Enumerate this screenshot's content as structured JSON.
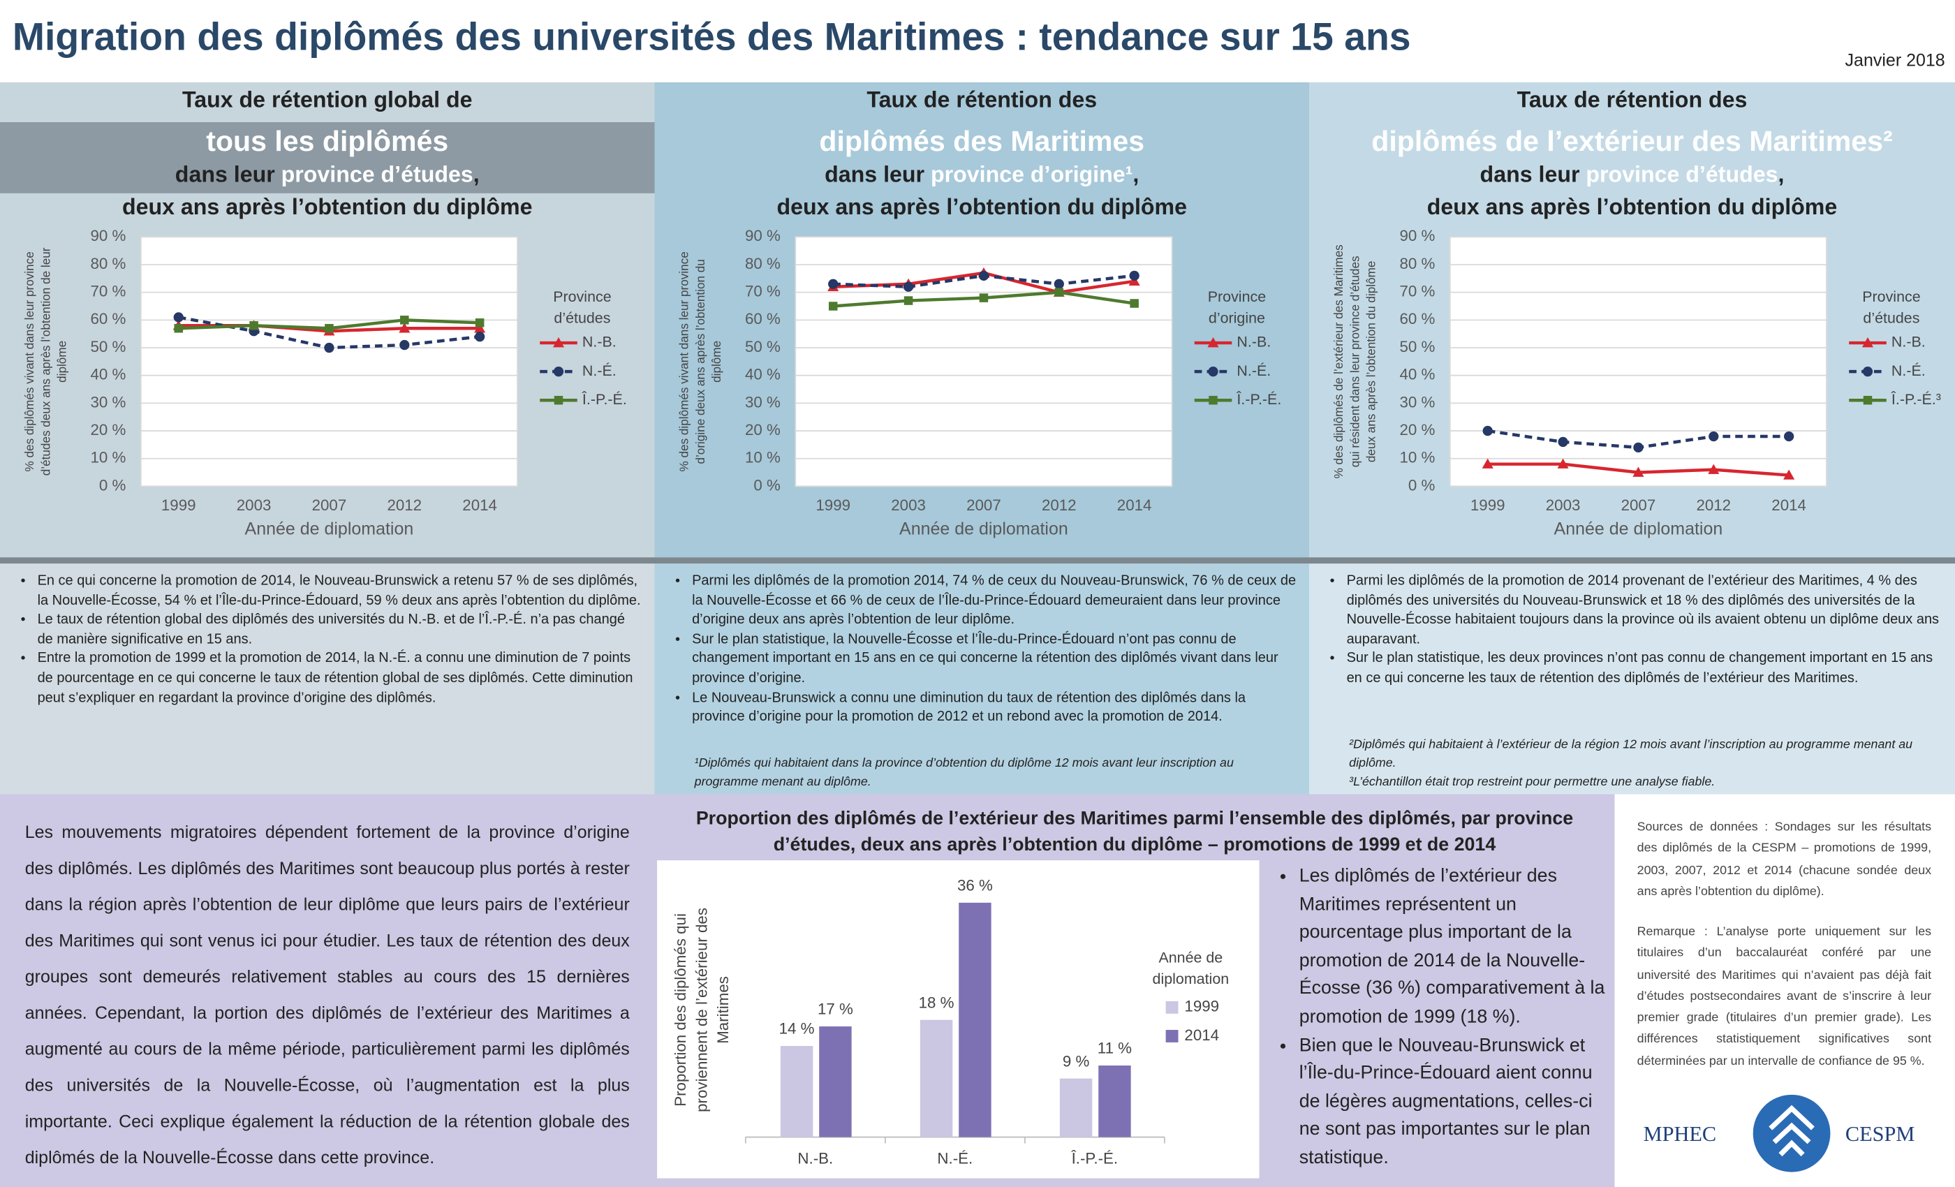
{
  "header": {
    "title": "Migration des diplômés des universités des Maritimes : tendance sur 15 ans",
    "date": "Janvier 2018"
  },
  "panels": [
    {
      "heading": [
        {
          "segments": [
            {
              "text": "Taux de rétention global de"
            }
          ]
        },
        {
          "size": "large",
          "segments": [
            {
              "text": "tous les diplômés",
              "emphasis": true
            }
          ]
        },
        {
          "segments": [
            {
              "text": "dans leur "
            },
            {
              "text": "province d’études",
              "emphasis": true
            },
            {
              "text": ","
            }
          ]
        },
        {
          "segments": [
            {
              "text": "deux ans après l’obtention du diplôme"
            }
          ]
        }
      ],
      "bullets": [
        "En ce qui concerne la promotion de 2014, le Nouveau-Brunswick a retenu 57 % de ses diplômés, la Nouvelle-Écosse, 54 % et l’Île-du-Prince-Édouard, 59 % deux ans après l’obtention du diplôme.",
        "Le taux de rétention global des diplômés des universités du N.-B. et de l’Î.-P.-É. n’a pas changé de manière significative en 15 ans.",
        "Entre la promotion de 1999 et la promotion de 2014, la N.-É. a connu une diminution de 7 points de pourcentage en ce qui concerne le taux de rétention global de ses diplômés. Cette diminution peut s’expliquer en regardant la province d’origine des diplômés."
      ],
      "footnotes": []
    },
    {
      "heading": [
        {
          "segments": [
            {
              "text": "Taux de rétention des"
            }
          ]
        },
        {
          "size": "large",
          "segments": [
            {
              "text": "diplômés des Maritimes",
              "emphasis": true
            }
          ]
        },
        {
          "segments": [
            {
              "text": "dans leur "
            },
            {
              "text": "province d’origine¹",
              "emphasis": true
            },
            {
              "text": ","
            }
          ]
        },
        {
          "segments": [
            {
              "text": "deux ans après l’obtention du diplôme"
            }
          ]
        }
      ],
      "bullets": [
        "Parmi les diplômés de la promotion 2014, 74 % de ceux du Nouveau-Brunswick, 76 % de ceux de la Nouvelle-Écosse et 66 % de ceux de l’Île-du-Prince-Édouard demeuraient dans leur province d’origine deux ans après l’obtention de leur diplôme.",
        "Sur le plan statistique, la Nouvelle-Écosse et l’Île-du-Prince-Édouard n’ont pas connu de changement important en 15 ans en ce qui concerne la rétention des diplômés vivant dans leur province d’origine.",
        "Le Nouveau-Brunswick a connu une diminution du taux de rétention des diplômés dans la province d’origine pour la promotion de 2012 et un rebond avec la promotion de 2014."
      ],
      "footnotes": [
        "¹Diplômés qui habitaient dans la province d’obtention du diplôme 12 mois avant leur inscription au programme menant au diplôme."
      ]
    },
    {
      "heading": [
        {
          "segments": [
            {
              "text": "Taux de rétention des"
            }
          ]
        },
        {
          "size": "large",
          "segments": [
            {
              "text": "diplômés de l’extérieur des Maritimes²",
              "emphasis": true
            }
          ]
        },
        {
          "segments": [
            {
              "text": "dans leur "
            },
            {
              "text": "province d’études",
              "emphasis": true
            },
            {
              "text": ","
            }
          ]
        },
        {
          "segments": [
            {
              "text": "deux ans après l’obtention du diplôme"
            }
          ]
        }
      ],
      "bullets": [
        "Parmi les diplômés de la promotion de 2014 provenant de l’extérieur des Maritimes, 4 % des diplômés des universités du Nouveau-Brunswick et 18 % des diplômés des universités de la Nouvelle-Écosse habitaient toujours dans la province où ils avaient obtenu un diplôme deux ans auparavant.",
        "Sur le plan statistique, les deux provinces n’ont pas connu de changement important en 15 ans en ce qui concerne les taux de rétention des diplômés de l’extérieur des Maritimes."
      ],
      "footnotes": [
        "²Diplômés qui habitaient à l’extérieur de la région 12 mois avant l’inscription au programme menant au diplôme.",
        "³L’échantillon était trop restreint pour permettre une analyse fiable."
      ]
    }
  ],
  "chart_data": [
    {
      "type": "line",
      "x_label": "Année de diplomation",
      "y_label": "% des diplômés vivant dans leur province d’études deux ans après l’obtention de leur diplôme",
      "legend_title": "Province d’études",
      "categories": [
        "1999",
        "2003",
        "2007",
        "2012",
        "2014"
      ],
      "ylim": [
        0,
        90
      ],
      "grid": true,
      "yticks": [
        {
          "value": 0,
          "label": "0 %"
        },
        {
          "value": 10,
          "label": "10 %"
        },
        {
          "value": 20,
          "label": "20 %"
        },
        {
          "value": 30,
          "label": "30 %"
        },
        {
          "value": 40,
          "label": "40 %"
        },
        {
          "value": 50,
          "label": "50 %"
        },
        {
          "value": 60,
          "label": "60 %"
        },
        {
          "value": 70,
          "label": "70 %"
        },
        {
          "value": 80,
          "label": "80 %"
        },
        {
          "value": 90,
          "label": "90 %"
        }
      ],
      "series": [
        {
          "name": "N.-B.",
          "color": "#d7262f",
          "marker": "triangle",
          "values": [
            58,
            58,
            56,
            57,
            57
          ]
        },
        {
          "name": "N.-É.",
          "color": "#263866",
          "marker": "circle",
          "dash": true,
          "values": [
            61,
            56,
            50,
            51,
            54
          ]
        },
        {
          "name": "Î.-P.-É.",
          "color": "#4e7a2e",
          "marker": "square",
          "values": [
            57,
            58,
            57,
            60,
            59
          ]
        }
      ]
    },
    {
      "type": "line",
      "x_label": "Année de diplomation",
      "y_label": "% des diplômés vivant dans leur province d’origine deux ans après l’obtention du diplôme",
      "legend_title": "Province d’origine",
      "categories": [
        "1999",
        "2003",
        "2007",
        "2012",
        "2014"
      ],
      "ylim": [
        0,
        90
      ],
      "grid": true,
      "yticks": [
        {
          "value": 0,
          "label": "0 %"
        },
        {
          "value": 10,
          "label": "10 %"
        },
        {
          "value": 20,
          "label": "20 %"
        },
        {
          "value": 30,
          "label": "30 %"
        },
        {
          "value": 40,
          "label": "40 %"
        },
        {
          "value": 50,
          "label": "50 %"
        },
        {
          "value": 60,
          "label": "60 %"
        },
        {
          "value": 70,
          "label": "70 %"
        },
        {
          "value": 80,
          "label": "80 %"
        },
        {
          "value": 90,
          "label": "90 %"
        }
      ],
      "series": [
        {
          "name": "N.-B.",
          "color": "#d7262f",
          "marker": "triangle",
          "values": [
            72,
            73,
            77,
            70,
            74
          ]
        },
        {
          "name": "N.-É.",
          "color": "#263866",
          "marker": "circle",
          "dash": true,
          "values": [
            73,
            72,
            76,
            73,
            76
          ]
        },
        {
          "name": "Î.-P.-É.",
          "color": "#4e7a2e",
          "marker": "square",
          "values": [
            65,
            67,
            68,
            70,
            66
          ]
        }
      ]
    },
    {
      "type": "line",
      "x_label": "Année de diplomation",
      "y_label": "% des diplômés de l’extérieur des Maritimes qui résident dans leur province d’études deux ans après l’obtention du diplôme",
      "legend_title": "Province d’études",
      "categories": [
        "1999",
        "2003",
        "2007",
        "2012",
        "2014"
      ],
      "ylim": [
        0,
        90
      ],
      "grid": true,
      "yticks": [
        {
          "value": 0,
          "label": "0 %"
        },
        {
          "value": 10,
          "label": "10 %"
        },
        {
          "value": 20,
          "label": "20 %"
        },
        {
          "value": 30,
          "label": "30 %"
        },
        {
          "value": 40,
          "label": "40 %"
        },
        {
          "value": 50,
          "label": "50 %"
        },
        {
          "value": 60,
          "label": "60 %"
        },
        {
          "value": 70,
          "label": "70 %"
        },
        {
          "value": 80,
          "label": "80 %"
        },
        {
          "value": 90,
          "label": "90 %"
        }
      ],
      "series": [
        {
          "name": "N.-B.",
          "color": "#d7262f",
          "marker": "triangle",
          "values": [
            8,
            8,
            5,
            6,
            4
          ]
        },
        {
          "name": "N.-É.",
          "color": "#263866",
          "marker": "circle",
          "dash": true,
          "values": [
            20,
            16,
            14,
            18,
            18
          ]
        },
        {
          "name": "Î.-P.-É.³",
          "color": "#4e7a2e",
          "marker": "square",
          "values": [
            null,
            null,
            null,
            null,
            null
          ]
        }
      ]
    },
    {
      "type": "bar",
      "title": "Proportion des diplômés de l’extérieur des Maritimes parmi l’ensemble des diplômés, par province d’études, deux ans après l’obtention du diplôme – promotions de 1999 et de 2014",
      "y_label": "Proportion des diplômés qui proviennent de l’extérieur des Maritimes",
      "legend_title": "Année de diplomation",
      "categories": [
        "N.-B.",
        "N.-É.",
        "Î.-P.-É."
      ],
      "series": [
        {
          "name": "1999",
          "color": "#cbc6e2",
          "values": [
            14,
            18,
            9
          ],
          "value_labels": [
            "14 %",
            "18 %",
            "9 %"
          ]
        },
        {
          "name": "2014",
          "color": "#7e71b3",
          "values": [
            17,
            36,
            11
          ],
          "value_labels": [
            "17 %",
            "36 %",
            "11 %"
          ]
        }
      ]
    }
  ],
  "bottom": {
    "paragraph": "Les mouvements migratoires dépendent fortement de la province d’origine des diplômés. Les diplômés des Maritimes sont beaucoup plus portés à rester dans la région après l’obtention de leur diplôme que leurs pairs de l’extérieur des Maritimes qui sont venus ici pour étudier. Les taux de rétention des deux groupes sont demeurés relativement stables au cours des 15 dernières années. Cependant, la portion des diplômés de l’extérieur des Maritimes a augmenté au cours de la même période, particulièrement parmi les diplômés des universités de la Nouvelle-Écosse, où l’augmentation est la plus importante. Ceci explique également la réduction de la rétention globale des diplômés de la Nouvelle-Écosse dans cette province.",
    "bullets": [
      "Les diplômés de l’extérieur des Maritimes représentent un pourcentage plus important de la promotion de 2014 de la Nouvelle-Écosse (36 %) comparativement à la promotion de 1999 (18 %).",
      "Bien que le Nouveau-Brunswick et l’Île-du-Prince-Édouard aient connu de légères augmentations, celles-ci ne sont pas importantes sur le plan statistique."
    ],
    "sources": "Sources de données : Sondages sur les résultats des diplômés de la CESPM – promotions de 1999, 2003, 2007, 2012 et 2014 (chacune sondée deux ans après l’obtention du diplôme).",
    "remark": "Remarque : L’analyse porte uniquement sur les titulaires d’un baccalauréat conféré par une université des Maritimes qui n’avaient pas déjà fait d’études postsecondaires avant de s’inscrire à leur premier grade (titulaires d’un premier grade). Les différences statistiquement significatives sont déterminées par un intervalle de confiance de 95 %.",
    "logo": [
      "MPHEC",
      "CESPM"
    ]
  }
}
